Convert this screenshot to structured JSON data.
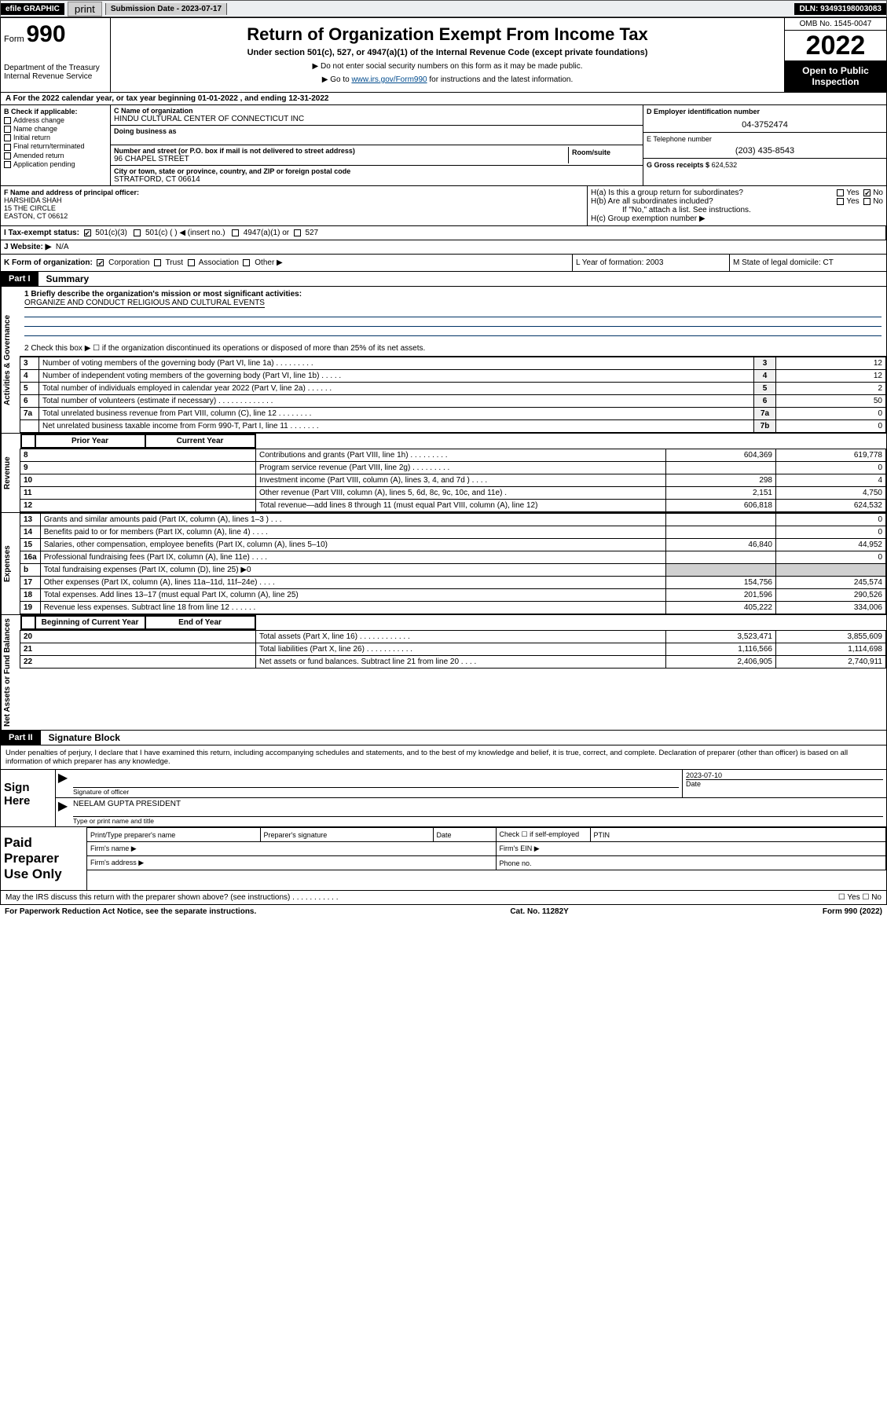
{
  "topbar": {
    "efile": "efile GRAPHIC",
    "print": "print",
    "subdate": "Submission Date - 2023-07-17",
    "dln": "DLN: 93493198003083"
  },
  "header": {
    "form_label": "Form",
    "form_number": "990",
    "dept": "Department of the Treasury\nInternal Revenue Service",
    "title": "Return of Organization Exempt From Income Tax",
    "sub": "Under section 501(c), 527, or 4947(a)(1) of the Internal Revenue Code (except private foundations)",
    "note1": "▶ Do not enter social security numbers on this form as it may be made public.",
    "note2_pre": "▶ Go to ",
    "note2_link": "www.irs.gov/Form990",
    "note2_post": " for instructions and the latest information.",
    "omb": "OMB No. 1545-0047",
    "year": "2022",
    "inspect": "Open to Public Inspection"
  },
  "row_a": "A For the 2022 calendar year, or tax year beginning 01-01-2022    , and ending 12-31-2022",
  "col_b": {
    "hdr": "B Check if applicable:",
    "opts": [
      "Address change",
      "Name change",
      "Initial return",
      "Final return/terminated",
      "Amended return",
      "Application pending"
    ]
  },
  "col_c": {
    "name_lbl": "C Name of organization",
    "name": "HINDU CULTURAL CENTER OF CONNECTICUT INC",
    "dba_lbl": "Doing business as",
    "street_lbl": "Number and street (or P.O. box if mail is not delivered to street address)",
    "street": "96 CHAPEL STREET",
    "suite_lbl": "Room/suite",
    "city_lbl": "City or town, state or province, country, and ZIP or foreign postal code",
    "city": "STRATFORD, CT  06614"
  },
  "col_d": {
    "ein_lbl": "D Employer identification number",
    "ein": "04-3752474",
    "tel_lbl": "E Telephone number",
    "tel": "(203) 435-8543",
    "gross_lbl": "G Gross receipts $",
    "gross": "624,532"
  },
  "block_f": {
    "lbl": "F Name and address of principal officer:",
    "name": "HARSHIDA SHAH",
    "addr1": "15 THE CIRCLE",
    "addr2": "EASTON, CT  06612"
  },
  "block_h": {
    "a": "H(a)  Is this a group return for subordinates?",
    "b": "H(b)  Are all subordinates included?",
    "note": "If \"No,\" attach a list. See instructions.",
    "c": "H(c)  Group exemption number ▶"
  },
  "row_i": {
    "lbl": "I   Tax-exempt status:",
    "o1": "501(c)(3)",
    "o2": "501(c) (   ) ◀ (insert no.)",
    "o3": "4947(a)(1) or",
    "o4": "527"
  },
  "row_j": {
    "lbl": "J   Website: ▶",
    "val": "N/A"
  },
  "row_k": {
    "lbl": "K Form of organization:",
    "opts": [
      "Corporation",
      "Trust",
      "Association",
      "Other ▶"
    ],
    "l": "L Year of formation: 2003",
    "m": "M State of legal domicile: CT"
  },
  "part1": {
    "tag": "Part I",
    "title": "Summary"
  },
  "mission": {
    "q1_lbl": "1  Briefly describe the organization's mission or most significant activities:",
    "q1_val": "ORGANIZE AND CONDUCT RELIGIOUS AND CULTURAL EVENTS",
    "q2": "2  Check this box ▶ ☐  if the organization discontinued its operations or disposed of more than 25% of its net assets."
  },
  "sections": {
    "gov": "Activities & Governance",
    "rev": "Revenue",
    "exp": "Expenses",
    "net": "Net Assets or Fund Balances"
  },
  "gov_lines": [
    {
      "n": "3",
      "d": "Number of voting members of the governing body (Part VI, line 1a)  .   .   .   .   .   .   .   .   .",
      "c": "3",
      "v": "12"
    },
    {
      "n": "4",
      "d": "Number of independent voting members of the governing body (Part VI, line 1b)  .   .   .   .   .",
      "c": "4",
      "v": "12"
    },
    {
      "n": "5",
      "d": "Total number of individuals employed in calendar year 2022 (Part V, line 2a)  .   .   .   .   .   .",
      "c": "5",
      "v": "2"
    },
    {
      "n": "6",
      "d": "Total number of volunteers (estimate if necessary)  .   .   .   .   .   .   .   .   .   .   .   .   .",
      "c": "6",
      "v": "50"
    },
    {
      "n": "7a",
      "d": "Total unrelated business revenue from Part VIII, column (C), line 12  .   .   .   .   .   .   .   .",
      "c": "7a",
      "v": "0"
    },
    {
      "n": "",
      "d": "Net unrelated business taxable income from Form 990-T, Part I, line 11  .   .   .   .   .   .   .",
      "c": "7b",
      "v": "0"
    }
  ],
  "rev_hdr": {
    "py": "Prior Year",
    "cy": "Current Year"
  },
  "rev_lines": [
    {
      "n": "8",
      "d": "Contributions and grants (Part VIII, line 1h)  .   .   .   .   .   .   .   .   .",
      "py": "604,369",
      "cy": "619,778"
    },
    {
      "n": "9",
      "d": "Program service revenue (Part VIII, line 2g)  .   .   .   .   .   .   .   .   .",
      "py": "",
      "cy": "0"
    },
    {
      "n": "10",
      "d": "Investment income (Part VIII, column (A), lines 3, 4, and 7d )  .   .   .   .",
      "py": "298",
      "cy": "4"
    },
    {
      "n": "11",
      "d": "Other revenue (Part VIII, column (A), lines 5, 6d, 8c, 9c, 10c, and 11e)  .",
      "py": "2,151",
      "cy": "4,750"
    },
    {
      "n": "12",
      "d": "Total revenue—add lines 8 through 11 (must equal Part VIII, column (A), line 12)",
      "py": "606,818",
      "cy": "624,532"
    }
  ],
  "exp_lines": [
    {
      "n": "13",
      "d": "Grants and similar amounts paid (Part IX, column (A), lines 1–3 )  .   .   .",
      "py": "",
      "cy": "0"
    },
    {
      "n": "14",
      "d": "Benefits paid to or for members (Part IX, column (A), line 4)  .   .   .   .",
      "py": "",
      "cy": "0"
    },
    {
      "n": "15",
      "d": "Salaries, other compensation, employee benefits (Part IX, column (A), lines 5–10)",
      "py": "46,840",
      "cy": "44,952"
    },
    {
      "n": "16a",
      "d": "Professional fundraising fees (Part IX, column (A), line 11e)  .   .   .   .",
      "py": "",
      "cy": "0"
    },
    {
      "n": "b",
      "d": "Total fundraising expenses (Part IX, column (D), line 25) ▶0",
      "py": "shade",
      "cy": "shade"
    },
    {
      "n": "17",
      "d": "Other expenses (Part IX, column (A), lines 11a–11d, 11f–24e)  .   .   .   .",
      "py": "154,756",
      "cy": "245,574"
    },
    {
      "n": "18",
      "d": "Total expenses. Add lines 13–17 (must equal Part IX, column (A), line 25)",
      "py": "201,596",
      "cy": "290,526"
    },
    {
      "n": "19",
      "d": "Revenue less expenses. Subtract line 18 from line 12  .   .   .   .   .   .",
      "py": "405,222",
      "cy": "334,006"
    }
  ],
  "net_hdr": {
    "py": "Beginning of Current Year",
    "cy": "End of Year"
  },
  "net_lines": [
    {
      "n": "20",
      "d": "Total assets (Part X, line 16)  .   .   .   .   .   .   .   .   .   .   .   .",
      "py": "3,523,471",
      "cy": "3,855,609"
    },
    {
      "n": "21",
      "d": "Total liabilities (Part X, line 26)  .   .   .   .   .   .   .   .   .   .   .",
      "py": "1,116,566",
      "cy": "1,114,698"
    },
    {
      "n": "22",
      "d": "Net assets or fund balances. Subtract line 21 from line 20  .   .   .   .",
      "py": "2,406,905",
      "cy": "2,740,911"
    }
  ],
  "part2": {
    "tag": "Part II",
    "title": "Signature Block"
  },
  "sig_intro": "Under penalties of perjury, I declare that I have examined this return, including accompanying schedules and statements, and to the best of my knowledge and belief, it is true, correct, and complete. Declaration of preparer (other than officer) is based on all information of which preparer has any knowledge.",
  "sign": {
    "label": "Sign Here",
    "sig_cap": "Signature of officer",
    "date": "2023-07-10",
    "date_cap": "Date",
    "name": "NEELAM GUPTA PRESIDENT",
    "name_cap": "Type or print name and title"
  },
  "prep": {
    "label": "Paid Preparer Use Only",
    "c1": "Print/Type preparer's name",
    "c2": "Preparer's signature",
    "c3": "Date",
    "c4": "Check ☐ if self-employed",
    "c5": "PTIN",
    "firm_name": "Firm's name   ▶",
    "firm_ein": "Firm's EIN ▶",
    "firm_addr": "Firm's address ▶",
    "phone": "Phone no."
  },
  "footer1": "May the IRS discuss this return with the preparer shown above? (see instructions)   .   .   .   .   .   .   .   .   .   .   .",
  "footer_yn": "☐ Yes   ☐ No",
  "footer2a": "For Paperwork Reduction Act Notice, see the separate instructions.",
  "footer2b": "Cat. No. 11282Y",
  "footer2c": "Form 990 (2022)"
}
